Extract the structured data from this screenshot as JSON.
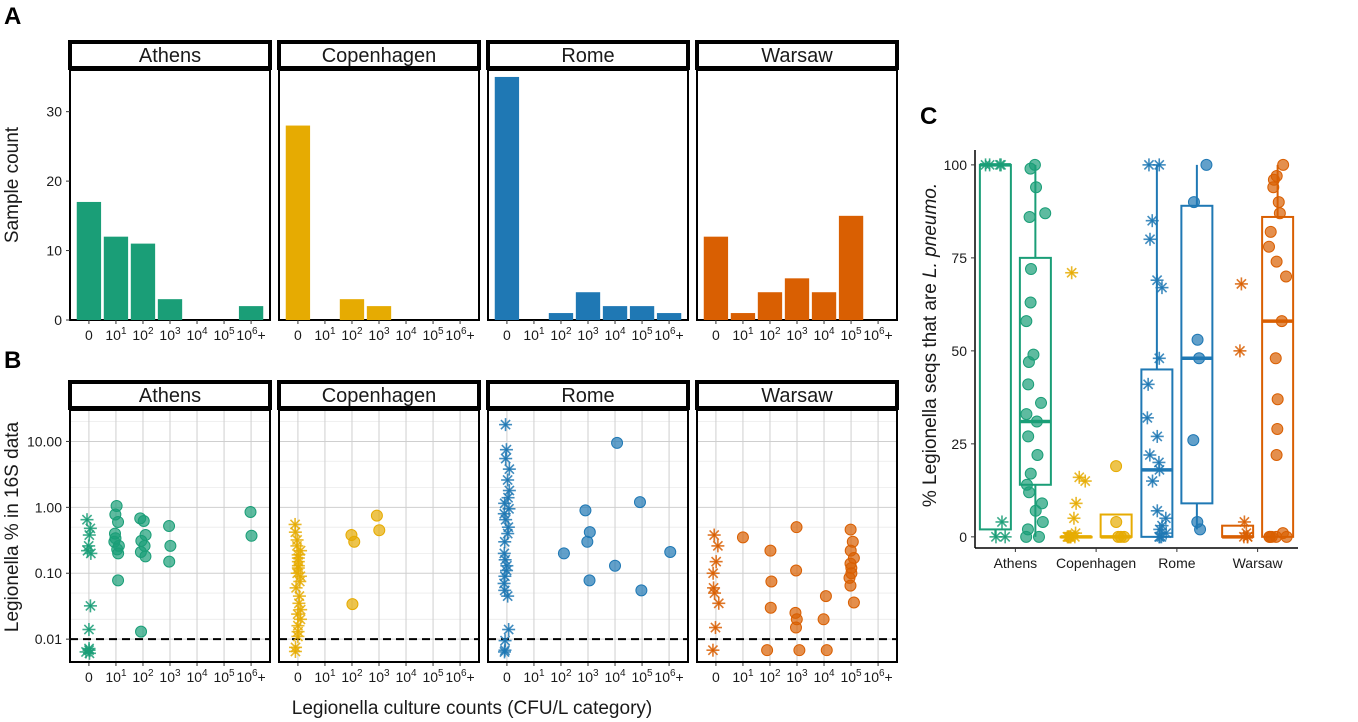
{
  "figure": {
    "panel_labels": [
      "A",
      "B",
      "C"
    ],
    "shared_xlabel": "Legionella culture counts (CFU/L category)"
  },
  "colors": {
    "Athens": "#1a9e77",
    "Copenhagen": "#e6ab02",
    "Rome": "#1f78b4",
    "Warsaw": "#d95f02"
  },
  "chart_data": [
    {
      "id": "A",
      "type": "bar",
      "facets": [
        "Athens",
        "Copenhagen",
        "Rome",
        "Warsaw"
      ],
      "categories": [
        "0",
        "10^1",
        "10^2",
        "10^3",
        "10^4",
        "10^5",
        "10^6+"
      ],
      "series": [
        {
          "name": "Athens",
          "values": [
            17,
            12,
            11,
            3,
            0,
            0,
            2
          ]
        },
        {
          "name": "Copenhagen",
          "values": [
            28,
            0,
            3,
            2,
            0,
            0,
            0
          ]
        },
        {
          "name": "Rome",
          "values": [
            35,
            0,
            1,
            4,
            2,
            2,
            1
          ]
        },
        {
          "name": "Warsaw",
          "values": [
            12,
            1,
            4,
            6,
            4,
            15,
            0
          ]
        }
      ],
      "ylabel": "Sample count",
      "ylim": [
        0,
        36
      ],
      "yticks": [
        0,
        10,
        20,
        30
      ],
      "grid": false
    },
    {
      "id": "B",
      "type": "scatter",
      "facets": [
        "Athens",
        "Copenhagen",
        "Rome",
        "Warsaw"
      ],
      "categories": [
        "0",
        "10^1",
        "10^2",
        "10^3",
        "10^4",
        "10^5",
        "10^6+"
      ],
      "yscale": "log",
      "ylabel": "Legionella % in 16S data",
      "yticks": [
        "0.01",
        "0.10",
        "1.00",
        "10.00"
      ],
      "ylim": [
        0.0045,
        30
      ],
      "reference_line": 0.01,
      "grid": true,
      "marker_note": "asterisk = category 0, circle = positive culture",
      "series": [
        {
          "name": "Athens",
          "points": [
            [
              "0",
              0.65
            ],
            [
              "0",
              0.48
            ],
            [
              "0",
              0.38
            ],
            [
              "0",
              0.26
            ],
            [
              "0",
              0.22
            ],
            [
              "0",
              0.2
            ],
            [
              "0",
              0.032
            ],
            [
              "0",
              0.014
            ],
            [
              "0",
              0.0072
            ],
            [
              "0",
              0.0068
            ],
            [
              "0",
              0.0064
            ],
            [
              "0",
              0.0061
            ],
            [
              "10^1",
              1.05
            ],
            [
              "10^1",
              0.78
            ],
            [
              "10^1",
              0.6
            ],
            [
              "10^1",
              0.4
            ],
            [
              "10^1",
              0.34
            ],
            [
              "10^1",
              0.3
            ],
            [
              "10^1",
              0.26
            ],
            [
              "10^1",
              0.23
            ],
            [
              "10^1",
              0.2
            ],
            [
              "10^1",
              0.078
            ],
            [
              "10^2",
              0.68
            ],
            [
              "10^2",
              0.62
            ],
            [
              "10^2",
              0.38
            ],
            [
              "10^2",
              0.31
            ],
            [
              "10^2",
              0.26
            ],
            [
              "10^2",
              0.21
            ],
            [
              "10^2",
              0.18
            ],
            [
              "10^2",
              0.013
            ],
            [
              "10^3",
              0.52
            ],
            [
              "10^3",
              0.26
            ],
            [
              "10^3",
              0.15
            ],
            [
              "10^6+",
              0.85
            ],
            [
              "10^6+",
              0.37
            ]
          ]
        },
        {
          "name": "Copenhagen",
          "points": [
            [
              "0",
              0.55
            ],
            [
              "0",
              0.42
            ],
            [
              "0",
              0.32
            ],
            [
              "0",
              0.26
            ],
            [
              "0",
              0.22
            ],
            [
              "0",
              0.19
            ],
            [
              "0",
              0.17
            ],
            [
              "0",
              0.15
            ],
            [
              "0",
              0.13
            ],
            [
              "0",
              0.12
            ],
            [
              "0",
              0.1
            ],
            [
              "0",
              0.09
            ],
            [
              "0",
              0.075
            ],
            [
              "0",
              0.06
            ],
            [
              "0",
              0.045
            ],
            [
              "0",
              0.035
            ],
            [
              "0",
              0.028
            ],
            [
              "0",
              0.024
            ],
            [
              "0",
              0.02
            ],
            [
              "0",
              0.016
            ],
            [
              "0",
              0.013
            ],
            [
              "0",
              0.011
            ],
            [
              "0",
              0.0075
            ],
            [
              "0",
              0.0065
            ],
            [
              "10^2",
              0.38
            ],
            [
              "10^2",
              0.3
            ],
            [
              "10^2",
              0.034
            ],
            [
              "10^3",
              0.75
            ],
            [
              "10^3",
              0.45
            ]
          ]
        },
        {
          "name": "Rome",
          "points": [
            [
              "0",
              18
            ],
            [
              "0",
              7.5
            ],
            [
              "0",
              5.5
            ],
            [
              "0",
              3.8
            ],
            [
              "0",
              2.6
            ],
            [
              "0",
              1.8
            ],
            [
              "0",
              1.4
            ],
            [
              "0",
              1.15
            ],
            [
              "0",
              0.95
            ],
            [
              "0",
              0.8
            ],
            [
              "0",
              0.65
            ],
            [
              "0",
              0.5
            ],
            [
              "0",
              0.4
            ],
            [
              "0",
              0.3
            ],
            [
              "0",
              0.2
            ],
            [
              "0",
              0.16
            ],
            [
              "0",
              0.13
            ],
            [
              "0",
              0.11
            ],
            [
              "0",
              0.09
            ],
            [
              "0",
              0.07
            ],
            [
              "0",
              0.055
            ],
            [
              "0",
              0.045
            ],
            [
              "0",
              0.014
            ],
            [
              "0",
              0.0095
            ],
            [
              "0",
              0.0068
            ],
            [
              "0",
              0.0064
            ],
            [
              "10^2",
              0.2
            ],
            [
              "10^3",
              0.9
            ],
            [
              "10^3",
              0.42
            ],
            [
              "10^3",
              0.3
            ],
            [
              "10^3",
              0.078
            ],
            [
              "10^4",
              9.5
            ],
            [
              "10^4",
              0.13
            ],
            [
              "10^5",
              1.2
            ],
            [
              "10^5",
              0.055
            ],
            [
              "10^6+",
              0.21
            ]
          ]
        },
        {
          "name": "Warsaw",
          "points": [
            [
              "0",
              0.38
            ],
            [
              "0",
              0.26
            ],
            [
              "0",
              0.15
            ],
            [
              "0",
              0.1
            ],
            [
              "0",
              0.06
            ],
            [
              "0",
              0.05
            ],
            [
              "0",
              0.035
            ],
            [
              "0",
              0.015
            ],
            [
              "0",
              0.0068
            ],
            [
              "10^1",
              0.35
            ],
            [
              "10^2",
              0.22
            ],
            [
              "10^2",
              0.075
            ],
            [
              "10^2",
              0.03
            ],
            [
              "10^2",
              0.0068
            ],
            [
              "10^3",
              0.5
            ],
            [
              "10^3",
              0.11
            ],
            [
              "10^3",
              0.025
            ],
            [
              "10^3",
              0.02
            ],
            [
              "10^3",
              0.015
            ],
            [
              "10^3",
              0.0068
            ],
            [
              "10^4",
              0.045
            ],
            [
              "10^4",
              0.02
            ],
            [
              "10^4",
              0.0068
            ],
            [
              "10^5",
              0.46
            ],
            [
              "10^5",
              0.3
            ],
            [
              "10^5",
              0.22
            ],
            [
              "10^5",
              0.17
            ],
            [
              "10^5",
              0.14
            ],
            [
              "10^5",
              0.12
            ],
            [
              "10^5",
              0.1
            ],
            [
              "10^5",
              0.085
            ],
            [
              "10^5",
              0.065
            ],
            [
              "10^5",
              0.036
            ]
          ]
        }
      ]
    },
    {
      "id": "C",
      "type": "box",
      "categories": [
        "Athens",
        "Copenhagen",
        "Rome",
        "Warsaw"
      ],
      "ylabel": "% Legionella seqs that are L. pneumo.",
      "ylabel_parts": [
        "% Legionella seqs that are ",
        "L. pneumo."
      ],
      "ylim": [
        -3,
        104
      ],
      "yticks": [
        0,
        25,
        50,
        75,
        100
      ],
      "grid": false,
      "groups": [
        {
          "city": "Athens",
          "subgroup": "culture 0",
          "marker": "asterisk",
          "box": {
            "q1": 2,
            "median": 100,
            "q3": 100,
            "min": 0,
            "max": 100
          },
          "points": [
            100,
            100,
            100,
            100,
            4,
            0,
            0
          ]
        },
        {
          "city": "Athens",
          "subgroup": "culture positive",
          "marker": "circle",
          "box": {
            "q1": 14,
            "median": 31,
            "q3": 75,
            "min": 0,
            "max": 100
          },
          "points": [
            100,
            99,
            94,
            87,
            86,
            72,
            63,
            58,
            49,
            47,
            41,
            36,
            33,
            31,
            27,
            22,
            17,
            14,
            12,
            9,
            7,
            4,
            2,
            0,
            0
          ]
        },
        {
          "city": "Copenhagen",
          "subgroup": "culture 0",
          "marker": "asterisk",
          "box": {
            "q1": 0,
            "median": 0,
            "q3": 0,
            "min": 0,
            "max": 0
          },
          "points": [
            71,
            16,
            15,
            9,
            5,
            1,
            0,
            0,
            0,
            0,
            0,
            0,
            0,
            0
          ]
        },
        {
          "city": "Copenhagen",
          "subgroup": "culture positive",
          "marker": "circle",
          "box": {
            "q1": 0,
            "median": 0,
            "q3": 6,
            "min": 0,
            "max": 6
          },
          "points": [
            19,
            4,
            0,
            0,
            0
          ]
        },
        {
          "city": "Rome",
          "subgroup": "culture 0",
          "marker": "asterisk",
          "box": {
            "q1": 0,
            "median": 18,
            "q3": 45,
            "min": 0,
            "max": 100
          },
          "points": [
            100,
            100,
            85,
            80,
            69,
            67,
            48,
            41,
            32,
            27,
            22,
            20,
            18,
            15,
            7,
            5,
            3,
            2,
            1,
            0,
            0,
            0
          ]
        },
        {
          "city": "Rome",
          "subgroup": "culture positive",
          "marker": "circle",
          "box": {
            "q1": 9,
            "median": 48,
            "q3": 89,
            "min": 2,
            "max": 100
          },
          "points": [
            100,
            90,
            53,
            48,
            26,
            4,
            2
          ]
        },
        {
          "city": "Warsaw",
          "subgroup": "culture 0",
          "marker": "asterisk",
          "box": {
            "q1": 0,
            "median": 0,
            "q3": 3,
            "min": 0,
            "max": 3
          },
          "points": [
            68,
            50,
            4,
            1,
            0,
            0,
            0
          ]
        },
        {
          "city": "Warsaw",
          "subgroup": "culture positive",
          "marker": "circle",
          "box": {
            "q1": 0,
            "median": 58,
            "q3": 86,
            "min": 0,
            "max": 100
          },
          "points": [
            100,
            97,
            96,
            94,
            90,
            87,
            82,
            78,
            74,
            70,
            58,
            48,
            37,
            29,
            22,
            1,
            0,
            0,
            0,
            0,
            0
          ]
        }
      ]
    }
  ]
}
